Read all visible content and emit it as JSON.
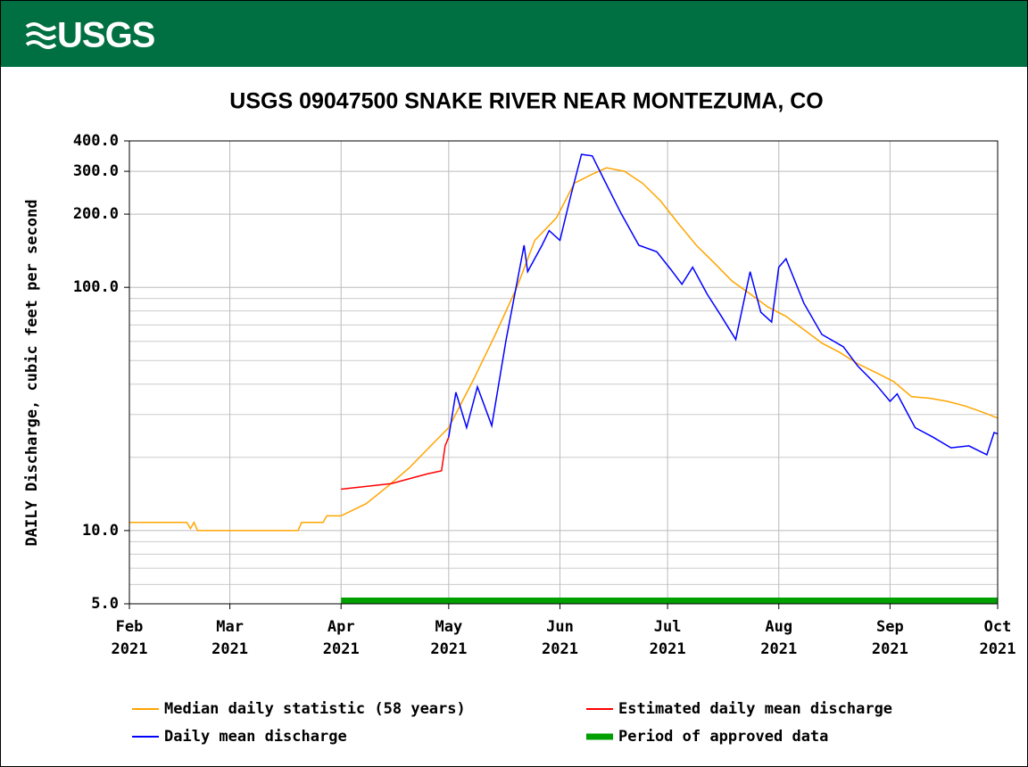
{
  "header": {
    "logo": "USGS"
  },
  "chart_data": {
    "type": "line",
    "title": "USGS 09047500 SNAKE RIVER NEAR MONTEZUMA, CO",
    "y_label": "DAILY Discharge, cubic feet per second",
    "log_y": true,
    "grid": true,
    "xlim": [
      "2021-02-01",
      "2021-10-01"
    ],
    "xticks": [
      {
        "value": "2021-02-01",
        "label": [
          "Feb",
          "2021"
        ]
      },
      {
        "value": "2021-03-01",
        "label": [
          "Mar",
          "2021"
        ]
      },
      {
        "value": "2021-04-01",
        "label": [
          "Apr",
          "2021"
        ]
      },
      {
        "value": "2021-05-01",
        "label": [
          "May",
          "2021"
        ]
      },
      {
        "value": "2021-06-01",
        "label": [
          "Jun",
          "2021"
        ]
      },
      {
        "value": "2021-07-01",
        "label": [
          "Jul",
          "2021"
        ]
      },
      {
        "value": "2021-08-01",
        "label": [
          "Aug",
          "2021"
        ]
      },
      {
        "value": "2021-09-01",
        "label": [
          "Sep",
          "2021"
        ]
      },
      {
        "value": "2021-10-01",
        "label": [
          "Oct",
          "2021"
        ]
      }
    ],
    "ylim": [
      5,
      400
    ],
    "yticks": [
      {
        "value": 5,
        "label": "5.0"
      },
      {
        "value": 10,
        "label": "10.0"
      },
      {
        "value": 100,
        "label": "100.0"
      },
      {
        "value": 200,
        "label": "200.0"
      },
      {
        "value": 300,
        "label": "300.0"
      },
      {
        "value": 400,
        "label": "400.0"
      }
    ],
    "yminor": [
      6,
      7,
      8,
      9,
      20,
      30,
      40,
      50,
      60,
      70,
      80,
      90
    ],
    "series": [
      {
        "name": "Median daily statistic (58 years)",
        "color": "#ffa500",
        "x": [
          "2021-02-01",
          "2021-02-17",
          "2021-02-18",
          "2021-02-19",
          "2021-02-20",
          "2021-03-20",
          "2021-03-21",
          "2021-03-27",
          "2021-03-28",
          "2021-04-01",
          "2021-04-08",
          "2021-04-14",
          "2021-04-20",
          "2021-04-26",
          "2021-05-01",
          "2021-05-08",
          "2021-05-14",
          "2021-05-20",
          "2021-05-25",
          "2021-05-31",
          "2021-06-05",
          "2021-06-10",
          "2021-06-14",
          "2021-06-19",
          "2021-06-24",
          "2021-06-29",
          "2021-07-04",
          "2021-07-09",
          "2021-07-14",
          "2021-07-19",
          "2021-07-24",
          "2021-07-29",
          "2021-08-03",
          "2021-08-08",
          "2021-08-13",
          "2021-08-18",
          "2021-08-23",
          "2021-08-28",
          "2021-09-02",
          "2021-09-07",
          "2021-09-12",
          "2021-09-17",
          "2021-09-22",
          "2021-09-27",
          "2021-10-01"
        ],
        "values": [
          10.8,
          10.8,
          10.2,
          10.8,
          10,
          10,
          10.8,
          10.8,
          11.5,
          11.5,
          12.9,
          15.2,
          18.1,
          22.3,
          26.5,
          42,
          64,
          100,
          156,
          193,
          268,
          292,
          310,
          300,
          268,
          227,
          183,
          149,
          126,
          106,
          94,
          83,
          76,
          67,
          59,
          54,
          48.5,
          44.7,
          41,
          35.5,
          35,
          34,
          32.5,
          30.6,
          29
        ]
      },
      {
        "name": "Estimated daily mean discharge",
        "color": "#ff0000",
        "x": [
          "2021-04-01",
          "2021-04-15",
          "2021-04-25",
          "2021-04-29",
          "2021-04-30",
          "2021-05-01"
        ],
        "values": [
          14.8,
          15.6,
          17.1,
          17.6,
          22.3,
          24.2
        ]
      },
      {
        "name": "Daily mean discharge",
        "color": "#0000ff",
        "x": [
          "2021-05-01",
          "2021-05-03",
          "2021-05-06",
          "2021-05-09",
          "2021-05-13",
          "2021-05-17",
          "2021-05-22",
          "2021-05-23",
          "2021-05-27",
          "2021-05-29",
          "2021-06-01",
          "2021-06-04",
          "2021-06-07",
          "2021-06-10",
          "2021-06-13",
          "2021-06-18",
          "2021-06-23",
          "2021-06-28",
          "2021-07-02",
          "2021-07-05",
          "2021-07-08",
          "2021-07-12",
          "2021-07-16",
          "2021-07-20",
          "2021-07-24",
          "2021-07-27",
          "2021-07-30",
          "2021-08-01",
          "2021-08-03",
          "2021-08-08",
          "2021-08-13",
          "2021-08-19",
          "2021-08-23",
          "2021-08-28",
          "2021-09-01",
          "2021-09-03",
          "2021-09-08",
          "2021-09-13",
          "2021-09-18",
          "2021-09-23",
          "2021-09-28",
          "2021-09-30",
          "2021-10-01"
        ],
        "values": [
          24.2,
          37,
          26.5,
          39,
          27,
          61,
          149,
          116,
          149,
          171,
          156,
          237,
          352,
          347,
          283,
          202,
          149,
          140,
          118,
          103,
          121,
          94,
          76,
          61,
          116,
          79,
          72,
          121,
          131,
          86,
          64,
          57,
          47.5,
          40,
          34,
          36.5,
          26.5,
          24.2,
          21.9,
          22.3,
          20.5,
          25.3,
          25
        ]
      }
    ],
    "approved_period": {
      "name": "Period of approved data",
      "color": "#00a000",
      "x": [
        "2021-04-01",
        "2021-10-01"
      ]
    }
  }
}
